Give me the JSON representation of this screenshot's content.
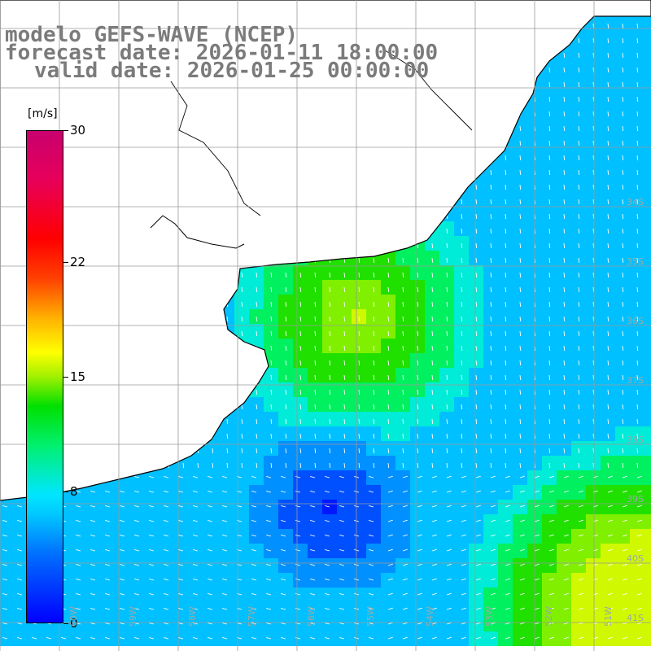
{
  "title": {
    "line1": "modelo GEFS-WAVE (NCEP)",
    "line2": "forecast date: 2026-01-11 18:00:00",
    "line3": "valid date: 2026-01-25 00:00:00"
  },
  "colorbar": {
    "unit": "[m/s]",
    "ticks": [
      "30",
      "22",
      "15",
      "8",
      "0"
    ],
    "tick_values": [
      30,
      22,
      15,
      8,
      0
    ],
    "range": [
      0,
      30
    ]
  },
  "map": {
    "lat_labels": [
      "34S",
      "35S",
      "36S",
      "37S",
      "38S",
      "39S",
      "40S",
      "41S"
    ],
    "lon_labels": [
      "60W",
      "59W",
      "58W",
      "57W",
      "56W",
      "55W",
      "54W",
      "53W",
      "52W",
      "51W"
    ],
    "land_color": "#ffffff",
    "grid_color": "#9a9a9a",
    "arrow_color": "#ffffff"
  }
}
